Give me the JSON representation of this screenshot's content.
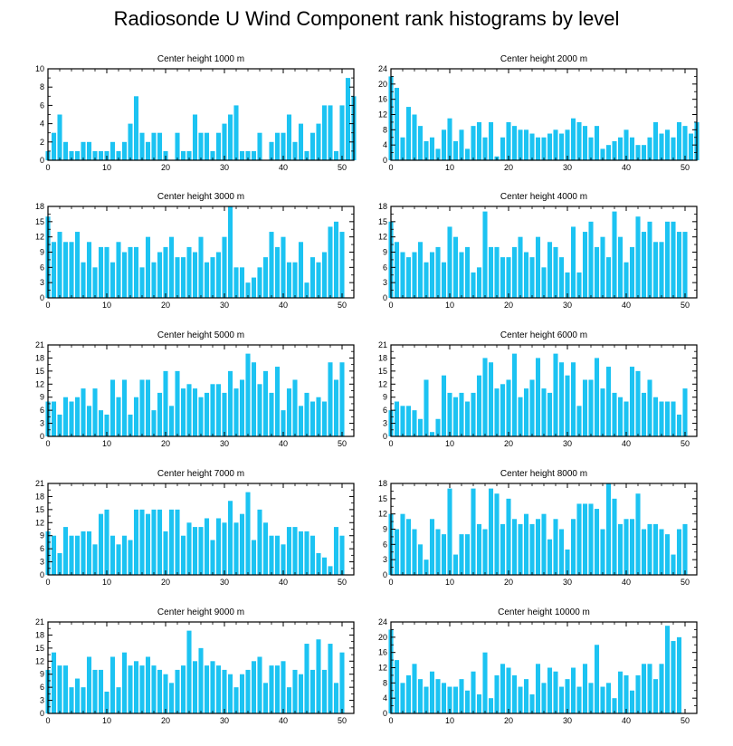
{
  "title": "Radiosonde U Wind Component rank histograms by level",
  "colors": {
    "bar": "#1cc3f2",
    "axis": "#000000",
    "background": "#ffffff"
  },
  "chart_data": [
    {
      "type": "bar",
      "title": "Center height 1000 m",
      "xlim": [
        0,
        52
      ],
      "ylim": [
        0,
        10
      ],
      "xticks": [
        0,
        10,
        20,
        30,
        40,
        50
      ],
      "yticks": [
        0,
        2,
        4,
        6,
        8,
        10
      ],
      "values": [
        1,
        3,
        5,
        2,
        1,
        1,
        2,
        2,
        1,
        1,
        1,
        2,
        1,
        2,
        4,
        7,
        3,
        2,
        3,
        3,
        1,
        0,
        3,
        1,
        1,
        5,
        3,
        3,
        1,
        3,
        4,
        5,
        6,
        1,
        1,
        1,
        3,
        0,
        2,
        3,
        3,
        5,
        2,
        4,
        1,
        3,
        4,
        6,
        6,
        1,
        6,
        9,
        7
      ]
    },
    {
      "type": "bar",
      "title": "Center height 2000 m",
      "xlim": [
        0,
        52
      ],
      "ylim": [
        0,
        24
      ],
      "xticks": [
        0,
        10,
        20,
        30,
        40,
        50
      ],
      "yticks": [
        0,
        4,
        8,
        12,
        16,
        20,
        24
      ],
      "values": [
        22,
        19,
        6,
        14,
        12,
        9,
        5,
        6,
        3,
        8,
        11,
        5,
        8,
        3,
        9,
        10,
        6,
        10,
        1,
        6,
        10,
        9,
        8,
        8,
        7,
        6,
        6,
        7,
        8,
        7,
        8,
        11,
        10,
        9,
        6,
        9,
        3,
        4,
        5,
        6,
        8,
        6,
        4,
        4,
        6,
        10,
        7,
        8,
        6,
        10,
        9,
        7,
        10
      ]
    },
    {
      "type": "bar",
      "title": "Center height 3000 m",
      "xlim": [
        0,
        52
      ],
      "ylim": [
        0,
        18
      ],
      "xticks": [
        0,
        10,
        20,
        30,
        40,
        50
      ],
      "yticks": [
        0,
        3,
        6,
        9,
        12,
        15,
        18
      ],
      "values": [
        16,
        11,
        13,
        11,
        11,
        13,
        7,
        11,
        6,
        10,
        10,
        7,
        11,
        9,
        10,
        10,
        6,
        12,
        7,
        9,
        10,
        12,
        8,
        8,
        10,
        9,
        12,
        7,
        8,
        9,
        12,
        18,
        6,
        6,
        3,
        4,
        6,
        8,
        13,
        10,
        12,
        7,
        7,
        11,
        3,
        8,
        7,
        9,
        14,
        15,
        13
      ]
    },
    {
      "type": "bar",
      "title": "Center height 4000 m",
      "xlim": [
        0,
        52
      ],
      "ylim": [
        0,
        18
      ],
      "xticks": [
        0,
        10,
        20,
        30,
        40,
        50
      ],
      "yticks": [
        0,
        3,
        6,
        9,
        12,
        15,
        18
      ],
      "values": [
        15,
        11,
        9,
        8,
        9,
        11,
        7,
        9,
        10,
        7,
        14,
        12,
        9,
        10,
        5,
        6,
        17,
        10,
        10,
        8,
        8,
        10,
        12,
        9,
        8,
        12,
        6,
        11,
        10,
        8,
        5,
        14,
        5,
        13,
        15,
        10,
        12,
        8,
        17,
        12,
        7,
        10,
        16,
        13,
        15,
        11,
        11,
        15,
        15,
        13,
        13
      ]
    },
    {
      "type": "bar",
      "title": "Center height 5000 m",
      "xlim": [
        0,
        52
      ],
      "ylim": [
        0,
        21
      ],
      "xticks": [
        0,
        10,
        20,
        30,
        40,
        50
      ],
      "yticks": [
        0,
        3,
        6,
        9,
        12,
        15,
        18,
        21
      ],
      "values": [
        8,
        8,
        5,
        9,
        8,
        9,
        11,
        7,
        11,
        6,
        5,
        13,
        9,
        13,
        5,
        9,
        13,
        13,
        6,
        10,
        15,
        7,
        15,
        11,
        12,
        11,
        9,
        10,
        12,
        12,
        10,
        15,
        11,
        13,
        19,
        17,
        12,
        15,
        10,
        16,
        6,
        11,
        13,
        7,
        10,
        8,
        9,
        8,
        17,
        13,
        17
      ]
    },
    {
      "type": "bar",
      "title": "Center height 6000 m",
      "xlim": [
        0,
        52
      ],
      "ylim": [
        0,
        21
      ],
      "xticks": [
        0,
        10,
        20,
        30,
        40,
        50
      ],
      "yticks": [
        0,
        3,
        6,
        9,
        12,
        15,
        18,
        21
      ],
      "values": [
        6,
        8,
        7,
        7,
        6,
        4,
        13,
        1,
        4,
        14,
        10,
        9,
        10,
        8,
        10,
        14,
        18,
        17,
        11,
        12,
        13,
        19,
        9,
        11,
        13,
        18,
        11,
        10,
        19,
        17,
        14,
        17,
        7,
        13,
        13,
        18,
        11,
        16,
        10,
        9,
        8,
        16,
        15,
        10,
        13,
        9,
        8,
        8,
        8,
        5,
        11
      ]
    },
    {
      "type": "bar",
      "title": "Center height 7000 m",
      "xlim": [
        0,
        52
      ],
      "ylim": [
        0,
        21
      ],
      "xticks": [
        0,
        10,
        20,
        30,
        40,
        50
      ],
      "yticks": [
        0,
        3,
        6,
        9,
        12,
        15,
        18,
        21
      ],
      "values": [
        10,
        9,
        5,
        11,
        9,
        9,
        10,
        10,
        7,
        14,
        15,
        9,
        7,
        9,
        8,
        15,
        15,
        14,
        15,
        15,
        10,
        15,
        15,
        9,
        12,
        11,
        11,
        13,
        8,
        13,
        12,
        17,
        12,
        14,
        19,
        8,
        15,
        12,
        9,
        9,
        7,
        11,
        11,
        10,
        10,
        9,
        5,
        4,
        2,
        11,
        9
      ]
    },
    {
      "type": "bar",
      "title": "Center height 8000 m",
      "xlim": [
        0,
        52
      ],
      "ylim": [
        0,
        18
      ],
      "xticks": [
        0,
        10,
        20,
        30,
        40,
        50
      ],
      "yticks": [
        0,
        3,
        6,
        9,
        12,
        15,
        18
      ],
      "values": [
        12,
        9,
        12,
        11,
        9,
        6,
        3,
        11,
        9,
        8,
        17,
        4,
        8,
        8,
        17,
        10,
        9,
        17,
        16,
        10,
        15,
        11,
        10,
        12,
        10,
        11,
        12,
        7,
        11,
        9,
        5,
        11,
        14,
        14,
        14,
        13,
        9,
        18,
        15,
        10,
        11,
        11,
        16,
        9,
        10,
        10,
        9,
        8,
        4,
        9,
        10
      ]
    },
    {
      "type": "bar",
      "title": "Center height 9000 m",
      "xlim": [
        0,
        52
      ],
      "ylim": [
        0,
        21
      ],
      "xticks": [
        0,
        10,
        20,
        30,
        40,
        50
      ],
      "yticks": [
        0,
        3,
        6,
        9,
        12,
        15,
        18,
        21
      ],
      "values": [
        10,
        14,
        11,
        11,
        6,
        8,
        6,
        13,
        10,
        10,
        5,
        13,
        6,
        14,
        11,
        12,
        11,
        13,
        11,
        10,
        9,
        7,
        10,
        11,
        19,
        12,
        15,
        11,
        12,
        11,
        10,
        9,
        6,
        9,
        10,
        12,
        13,
        7,
        11,
        11,
        12,
        6,
        10,
        9,
        16,
        10,
        17,
        10,
        16,
        7,
        14
      ]
    },
    {
      "type": "bar",
      "title": "Center height 10000 m",
      "xlim": [
        0,
        52
      ],
      "ylim": [
        0,
        24
      ],
      "xticks": [
        0,
        10,
        20,
        30,
        40,
        50
      ],
      "yticks": [
        0,
        4,
        8,
        12,
        16,
        20,
        24
      ],
      "values": [
        22,
        14,
        8,
        10,
        13,
        9,
        7,
        11,
        9,
        8,
        7,
        7,
        9,
        6,
        11,
        5,
        16,
        4,
        10,
        13,
        12,
        10,
        7,
        9,
        5,
        13,
        8,
        12,
        11,
        7,
        9,
        12,
        7,
        13,
        8,
        18,
        7,
        8,
        4,
        11,
        10,
        6,
        10,
        13,
        13,
        9,
        13,
        23,
        19,
        20
      ]
    }
  ]
}
